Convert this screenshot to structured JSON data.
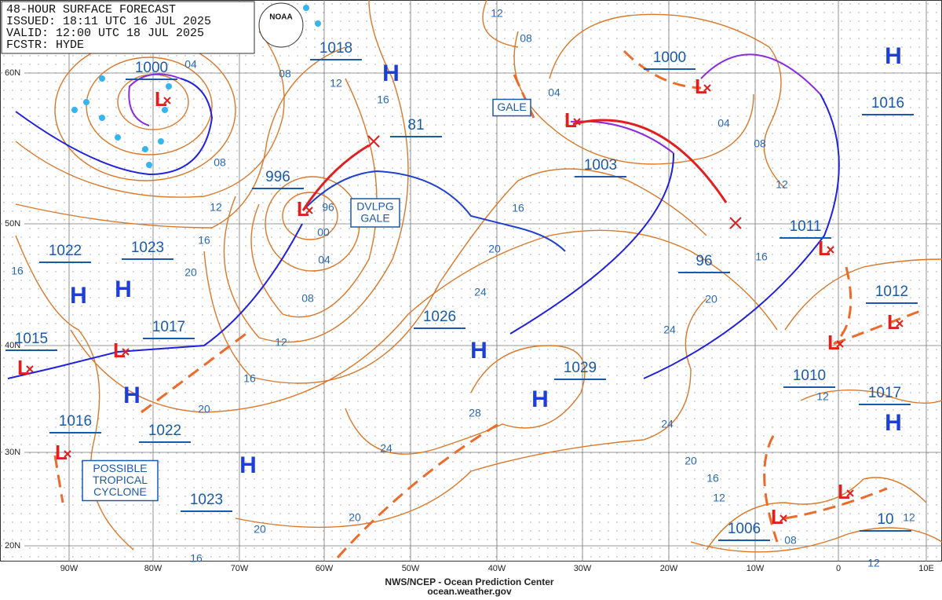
{
  "header": {
    "lines": [
      "48-HOUR SURFACE FORECAST",
      "ISSUED: 18:11 UTC 16 JUL 2025",
      "VALID:  12:00 UTC 18 JUL 2025",
      "FCSTR: HYDE"
    ]
  },
  "logo": "NOAA",
  "lat_labels": [
    "60N",
    "50N",
    "40N",
    "30N",
    "20N"
  ],
  "lon_labels": [
    "90W",
    "80W",
    "70W",
    "60W",
    "50W",
    "40W",
    "30W",
    "20W",
    "10W",
    "0",
    "10E"
  ],
  "pressure_centers": [
    "1000",
    "1018",
    "81",
    "996",
    "1022",
    "1023",
    "1017",
    "1015",
    "1016",
    "1022",
    "1023",
    "1026",
    "1029",
    "1003",
    "1000",
    "1016",
    "1011",
    "96",
    "1012",
    "1010",
    "1017",
    "1006",
    "10"
  ],
  "isobar_labels": [
    "04",
    "08",
    "12",
    "16",
    "12",
    "08",
    "04",
    "04",
    "08",
    "12",
    "08",
    "12",
    "16",
    "20",
    "16",
    "96",
    "00",
    "04",
    "08",
    "12",
    "16",
    "20",
    "16",
    "20",
    "24",
    "24",
    "20",
    "16",
    "12",
    "28",
    "24",
    "24",
    "20",
    "16",
    "12",
    "20",
    "20",
    "16",
    "08",
    "12",
    "12"
  ],
  "high_symbol": "H",
  "low_symbol": "L",
  "warnings": [
    [
      "GALE"
    ],
    [
      "DVLPG",
      "GALE"
    ],
    [
      "POSSIBLE",
      "TROPICAL",
      "CYCLONE"
    ]
  ],
  "footer": [
    "NWS/NCEP - Ocean Prediction Center",
    "ocean.weather.gov"
  ]
}
